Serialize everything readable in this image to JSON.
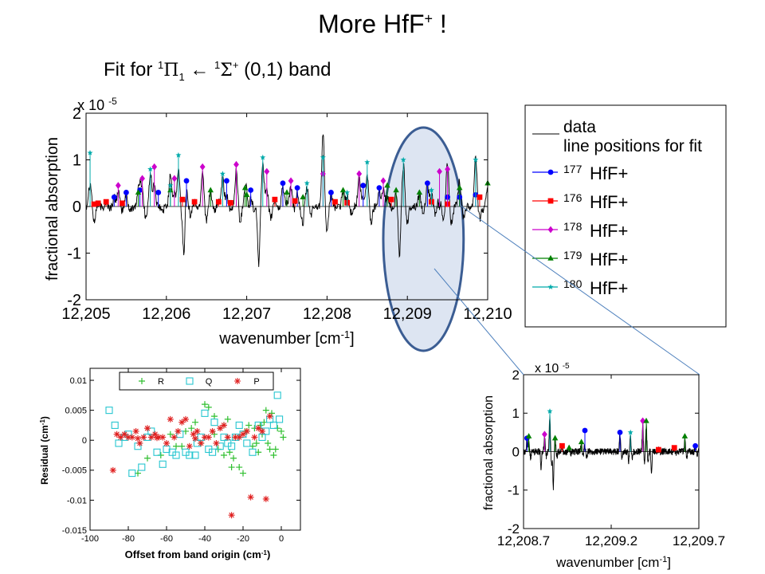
{
  "slide": {
    "title_main": "More HfF",
    "title_sup": "+",
    "title_tail": " !",
    "subtitle": {
      "fit_for": "Fit for ",
      "upper_sup": "1",
      "upper_sym": "Π",
      "upper_sub": "1",
      "arrow": " ← ",
      "lower_sup": "1",
      "lower_sym": "Σ",
      "lower_sup2": "+",
      "band": " (0,1) band"
    }
  },
  "colors": {
    "hf177": "#0000ff",
    "hf176": "#ff0000",
    "hf178": "#cc00cc",
    "hf179": "#008000",
    "hf180": "#00aaaa",
    "highlight_fill": "#dde5f2",
    "highlight_stroke": "#3b5d93",
    "callout": "#4f81bd",
    "resid_R": "#2fbf2f",
    "resid_Q": "#27c6d0",
    "resid_P": "#e02020"
  },
  "legend": {
    "data_label": "data",
    "fit_label": "line positions for fit",
    "isotopes": [
      {
        "mass": "177",
        "name": "HfF+",
        "marker": "circle",
        "color_key": "hf177"
      },
      {
        "mass": "176",
        "name": "HfF+",
        "marker": "square",
        "color_key": "hf176"
      },
      {
        "mass": "178",
        "name": "HfF+",
        "marker": "diamond",
        "color_key": "hf178"
      },
      {
        "mass": "179",
        "name": "HfF+",
        "marker": "triangle",
        "color_key": "hf179"
      },
      {
        "mass": "180",
        "name": "HfF+",
        "marker": "star",
        "color_key": "hf180"
      }
    ]
  },
  "chart_data": [
    {
      "id": "main",
      "type": "line",
      "xlabel": "wavenumber [cm",
      "xlabel_sup": "-1",
      "xlabel_tail": "]",
      "ylabel": "fractional absorption",
      "y_multiplier": "x 10",
      "y_multiplier_exp": "-5",
      "xlim": [
        12205,
        12210
      ],
      "ylim": [
        -2,
        2
      ],
      "xticks": [
        12205,
        12206,
        12207,
        12208,
        12209,
        12210
      ],
      "xtick_labels": [
        "12,205",
        "12,206",
        "12,207",
        "12,208",
        "12,209",
        "12,210"
      ],
      "yticks": [
        -2,
        -1,
        0,
        1,
        2
      ],
      "ytick_labels": [
        "-2",
        "-1",
        "0",
        "1",
        "2"
      ],
      "highlight_region": [
        12208.7,
        12209.7
      ],
      "line_positions": {
        "hf177": [
          [
            12205.35,
            0.2
          ],
          [
            12205.5,
            0.3
          ],
          [
            12205.67,
            0.35
          ],
          [
            12205.9,
            0.3
          ],
          [
            12206.25,
            0.55
          ],
          [
            12206.75,
            0.55
          ],
          [
            12207.05,
            0.35
          ],
          [
            12207.45,
            0.5
          ],
          [
            12207.63,
            0.4
          ],
          [
            12208.05,
            0.3
          ],
          [
            12208.45,
            0.45
          ],
          [
            12208.65,
            0.4
          ],
          [
            12209.25,
            0.5
          ],
          [
            12209.5,
            0.2
          ],
          [
            12209.65,
            0.2
          ],
          [
            12209.85,
            0.25
          ]
        ],
        "hf176": [
          [
            12205.1,
            0.05
          ],
          [
            12205.15,
            0.07
          ],
          [
            12205.25,
            0.1
          ],
          [
            12205.45,
            0.07
          ],
          [
            12206.2,
            0.15
          ],
          [
            12206.35,
            0.1
          ],
          [
            12206.65,
            0.1
          ],
          [
            12206.8,
            0.08
          ],
          [
            12207.35,
            0.15
          ],
          [
            12207.6,
            0.12
          ],
          [
            12208.1,
            0.1
          ],
          [
            12208.25,
            0.08
          ],
          [
            12208.8,
            0.15
          ],
          [
            12209.3,
            0.1
          ],
          [
            12209.5,
            0.05
          ],
          [
            12209.9,
            0.2
          ]
        ],
        "hf178": [
          [
            12205.4,
            0.45
          ],
          [
            12205.7,
            0.6
          ],
          [
            12205.85,
            0.85
          ],
          [
            12206.1,
            0.6
          ],
          [
            12206.45,
            0.85
          ],
          [
            12206.87,
            0.9
          ],
          [
            12207.25,
            0.75
          ],
          [
            12207.55,
            0.55
          ],
          [
            12207.95,
            0.7
          ],
          [
            12208.4,
            0.7
          ],
          [
            12208.7,
            0.55
          ],
          [
            12209.4,
            0.75
          ],
          [
            12209.5,
            0.8
          ]
        ],
        "hf179": [
          [
            12205.65,
            0.3
          ],
          [
            12206.05,
            0.35
          ],
          [
            12206.55,
            0.35
          ],
          [
            12206.98,
            0.4
          ],
          [
            12207.0,
            0.25
          ],
          [
            12207.5,
            0.3
          ],
          [
            12207.7,
            0.2
          ],
          [
            12208.2,
            0.35
          ],
          [
            12208.75,
            0.45
          ],
          [
            12208.86,
            0.35
          ],
          [
            12209.15,
            0.3
          ],
          [
            12209.65,
            0.4
          ],
          [
            12210.0,
            0.5
          ]
        ],
        "hf180": [
          [
            12205.05,
            1.15
          ],
          [
            12205.8,
            0.8
          ],
          [
            12206.05,
            0.45
          ],
          [
            12206.15,
            1.1
          ],
          [
            12206.7,
            0.7
          ],
          [
            12207.2,
            1.05
          ],
          [
            12207.75,
            0.5
          ],
          [
            12207.95,
            1.05
          ],
          [
            12208.25,
            0.3
          ],
          [
            12208.5,
            0.95
          ],
          [
            12208.95,
            1.0
          ],
          [
            12209.3,
            0.35
          ],
          [
            12209.85,
            1.0
          ]
        ]
      }
    },
    {
      "id": "zoom",
      "type": "line",
      "xlabel": "wavenumber [cm",
      "xlabel_sup": "-1",
      "xlabel_tail": "]",
      "ylabel": "fractional absorption",
      "y_multiplier": "x 10",
      "y_multiplier_exp": "-5",
      "xlim": [
        12208.7,
        12209.7
      ],
      "ylim": [
        -2,
        2
      ],
      "xticks": [
        12208.7,
        12209.2,
        12209.7
      ],
      "xtick_labels": [
        "12,208.7",
        "12,209.2",
        "12,209.7"
      ],
      "yticks": [
        -2,
        -1,
        0,
        1,
        2
      ],
      "ytick_labels": [
        "-2",
        "-1",
        "0",
        "1",
        "2"
      ],
      "line_positions": {
        "hf177": [
          [
            12208.72,
            0.35
          ],
          [
            12209.05,
            0.55
          ],
          [
            12209.25,
            0.5
          ],
          [
            12209.68,
            0.15
          ]
        ],
        "hf176": [
          [
            12208.92,
            0.15
          ],
          [
            12209.47,
            0.05
          ],
          [
            12209.56,
            0.1
          ]
        ],
        "hf178": [
          [
            12208.82,
            0.45
          ],
          [
            12209.38,
            0.8
          ]
        ],
        "hf179": [
          [
            12208.73,
            0.4
          ],
          [
            12208.88,
            0.35
          ],
          [
            12208.96,
            0.1
          ],
          [
            12209.03,
            0.25
          ],
          [
            12209.4,
            0.8
          ],
          [
            12209.62,
            0.4
          ]
        ],
        "hf180": [
          [
            12208.85,
            1.05
          ],
          [
            12209.31,
            0.5
          ]
        ]
      }
    },
    {
      "id": "residual",
      "type": "scatter",
      "xlabel": "Offset from band origin (cm",
      "xlabel_sup": "-1",
      "xlabel_tail": ")",
      "ylabel": "Residual (cm",
      "ylabel_sup": "-1",
      "ylabel_tail": ")",
      "xlim": [
        -100,
        10
      ],
      "ylim": [
        -0.015,
        0.012
      ],
      "xticks": [
        -100,
        -80,
        -60,
        -40,
        -20,
        0
      ],
      "xtick_labels": [
        "-100",
        "-80",
        "-60",
        "-40",
        "-20",
        "0"
      ],
      "yticks": [
        -0.015,
        -0.01,
        -0.005,
        0,
        0.005,
        0.01
      ],
      "ytick_labels": [
        "-0.015",
        "-0.01",
        "-0.005",
        "0",
        "0.005",
        "0.01"
      ],
      "legend_position": "top",
      "series": [
        {
          "name": "R",
          "marker": "plus",
          "color_key": "resid_R",
          "points": [
            [
              -75,
              -0.0055
            ],
            [
              -70,
              -0.003
            ],
            [
              -63,
              -0.0025
            ],
            [
              -58,
              0.001
            ],
            [
              -55,
              -0.001
            ],
            [
              -50,
              0.0015
            ],
            [
              -45,
              0.003
            ],
            [
              -40,
              0.006
            ],
            [
              -38,
              0.0055
            ],
            [
              -35,
              0.001
            ],
            [
              -33,
              -0.0015
            ],
            [
              -30,
              0.0025
            ],
            [
              -28,
              0.0035
            ],
            [
              -27,
              -0.002
            ],
            [
              -25,
              -0.003
            ],
            [
              -24,
              0.0005
            ],
            [
              -22,
              -0.0045
            ],
            [
              -20,
              -0.0055
            ],
            [
              -18,
              0.0015
            ],
            [
              -17,
              0.0025
            ],
            [
              -15,
              -0.001
            ],
            [
              -14,
              0.002
            ],
            [
              -12,
              -0.002
            ],
            [
              -10,
              0.001
            ],
            [
              -9,
              0.003
            ],
            [
              -8,
              0.005
            ],
            [
              -7,
              -0.0005
            ],
            [
              -6,
              -0.0015
            ],
            [
              -4,
              -0.0025
            ],
            [
              -3,
              -0.0015
            ],
            [
              -2,
              0.002
            ],
            [
              0,
              0.0015
            ],
            [
              1,
              0.0005
            ],
            [
              -35,
              0.004
            ],
            [
              -30,
              -0.0025
            ],
            [
              -26,
              -0.0045
            ],
            [
              -19,
              0.0015
            ],
            [
              -13,
              -0.0005
            ],
            [
              -11,
              0.0025
            ],
            [
              -5,
              0.0045
            ],
            [
              -42,
              -0.0005
            ],
            [
              -47,
              0.002
            ],
            [
              -52,
              -0.001
            ]
          ]
        },
        {
          "name": "Q",
          "marker": "square",
          "color_key": "resid_Q",
          "points": [
            [
              -90,
              0.005
            ],
            [
              -87,
              0.0025
            ],
            [
              -85,
              -0.0005
            ],
            [
              -82,
              0.0005
            ],
            [
              -80,
              0.001
            ],
            [
              -78,
              -0.0055
            ],
            [
              -75,
              -0.001
            ],
            [
              -73,
              -0.0045
            ],
            [
              -70,
              0.0005
            ],
            [
              -68,
              0.0015
            ],
            [
              -65,
              -0.002
            ],
            [
              -62,
              -0.004
            ],
            [
              -60,
              -0.0015
            ],
            [
              -57,
              -0.002
            ],
            [
              -55,
              -0.0025
            ],
            [
              -53,
              0.001
            ],
            [
              -50,
              -0.002
            ],
            [
              -48,
              -0.0025
            ],
            [
              -45,
              -0.0025
            ],
            [
              -42,
              0.0005
            ],
            [
              -40,
              0.0045
            ],
            [
              -38,
              -0.0015
            ],
            [
              -35,
              0.003
            ],
            [
              -32,
              -0.001
            ],
            [
              -30,
              0.0005
            ],
            [
              -28,
              -0.0005
            ],
            [
              -26,
              -0.001
            ],
            [
              -24,
              0.0005
            ],
            [
              -22,
              0.0025
            ],
            [
              -20,
              0.001
            ],
            [
              -18,
              -0.0005
            ],
            [
              -15,
              -0.002
            ],
            [
              -12,
              0.0025
            ],
            [
              -10,
              0.0005
            ],
            [
              -8,
              0.0015
            ],
            [
              -6,
              0.0035
            ],
            [
              -4,
              0.0025
            ],
            [
              -2,
              0.0075
            ],
            [
              -1,
              0.0035
            ],
            [
              -44,
              -0.0005
            ],
            [
              -36,
              -0.002
            ]
          ]
        },
        {
          "name": "P",
          "marker": "asterisk",
          "color_key": "resid_P",
          "points": [
            [
              -88,
              -0.005
            ],
            [
              -86,
              0.001
            ],
            [
              -84,
              0.0005
            ],
            [
              -82,
              0.001
            ],
            [
              -80,
              0.0005
            ],
            [
              -78,
              0.0005
            ],
            [
              -76,
              0.0015
            ],
            [
              -74,
              -0.0005
            ],
            [
              -72,
              0.0005
            ],
            [
              -70,
              0.002
            ],
            [
              -68,
              0.0005
            ],
            [
              -66,
              0.001
            ],
            [
              -64,
              0.0005
            ],
            [
              -62,
              0.0005
            ],
            [
              -60,
              -0.0005
            ],
            [
              -58,
              0.0035
            ],
            [
              -56,
              0.0005
            ],
            [
              -54,
              0.0015
            ],
            [
              -52,
              0.003
            ],
            [
              -50,
              0.0035
            ],
            [
              -48,
              -0.001
            ],
            [
              -46,
              0.001
            ],
            [
              -44,
              0.0015
            ],
            [
              -42,
              -0.0005
            ],
            [
              -40,
              0.0005
            ],
            [
              -38,
              0.0005
            ],
            [
              -36,
              0.0015
            ],
            [
              -34,
              -0.0005
            ],
            [
              -32,
              0.002
            ],
            [
              -30,
              0.0025
            ],
            [
              -28,
              0.0005
            ],
            [
              -26,
              -0.0125
            ],
            [
              -24,
              0.0005
            ],
            [
              -22,
              0.0005
            ],
            [
              -20,
              0.001
            ],
            [
              -18,
              0.0015
            ],
            [
              -16,
              -0.0095
            ],
            [
              -14,
              0.0005
            ],
            [
              -12,
              0.002
            ],
            [
              -10,
              0.0015
            ],
            [
              -8,
              -0.0098
            ],
            [
              -6,
              0.004
            ],
            [
              -45,
              0.0003
            ],
            [
              -65,
              0.0004
            ],
            [
              -75,
              0.0003
            ]
          ]
        }
      ]
    }
  ]
}
